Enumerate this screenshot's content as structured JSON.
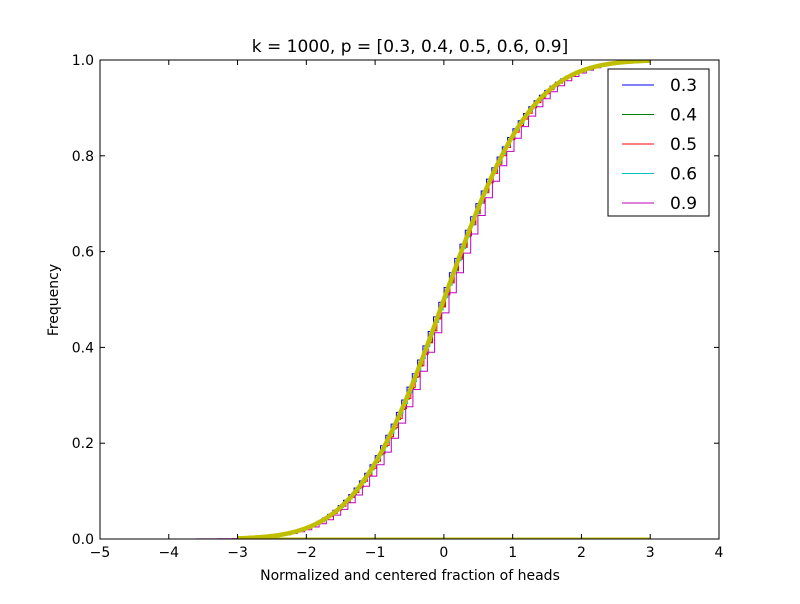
{
  "chart_data": {
    "type": "line",
    "title": "k = 1000, p = [0.3, 0.4, 0.5, 0.6, 0.9]",
    "xlabel": "Normalized and centered fraction of heads",
    "ylabel": "Frequency",
    "xlim": [
      -5,
      4
    ],
    "ylim": [
      0.0,
      1.0
    ],
    "xticks": [
      -5,
      -4,
      -3,
      -2,
      -1,
      0,
      1,
      2,
      3,
      4
    ],
    "xtick_labels": [
      "−5",
      "−4",
      "−3",
      "−2",
      "−1",
      "0",
      "1",
      "2",
      "3",
      "4"
    ],
    "yticks": [
      0.0,
      0.2,
      0.4,
      0.6,
      0.8,
      1.0
    ],
    "ytick_labels": [
      "0.0",
      "0.2",
      "0.4",
      "0.6",
      "0.8",
      "1.0"
    ],
    "grid": false,
    "legend_position": "top-right",
    "series": [
      {
        "name": "0.3",
        "color": "#0000ff",
        "style": "step",
        "offset": 0.06,
        "step": 0.077,
        "x_min": -3.0,
        "x_max": 3.0
      },
      {
        "name": "0.4",
        "color": "#008000",
        "style": "step",
        "offset": 0.02,
        "step": 0.064,
        "x_min": -3.0,
        "x_max": 3.0
      },
      {
        "name": "0.5",
        "color": "#ff0000",
        "style": "step",
        "offset": 0.0,
        "step": 0.063,
        "x_min": -3.0,
        "x_max": 3.0
      },
      {
        "name": "0.6",
        "color": "#00bfbf",
        "style": "step",
        "offset": 0.02,
        "step": 0.065,
        "x_min": -3.0,
        "x_max": 3.0
      },
      {
        "name": "0.9",
        "color": "#bf00bf",
        "style": "step",
        "offset": -0.04,
        "step": 0.105,
        "x_min": -3.6,
        "x_max": 3.0
      }
    ],
    "reference_curve": {
      "color": "#bfbf00",
      "description": "normal CDF",
      "x_min": -3.0,
      "x_max": 3.0
    },
    "baseline": {
      "color": "#bfbf00",
      "y": 0.0,
      "x_min": -3.0,
      "x_max": 3.0
    }
  }
}
